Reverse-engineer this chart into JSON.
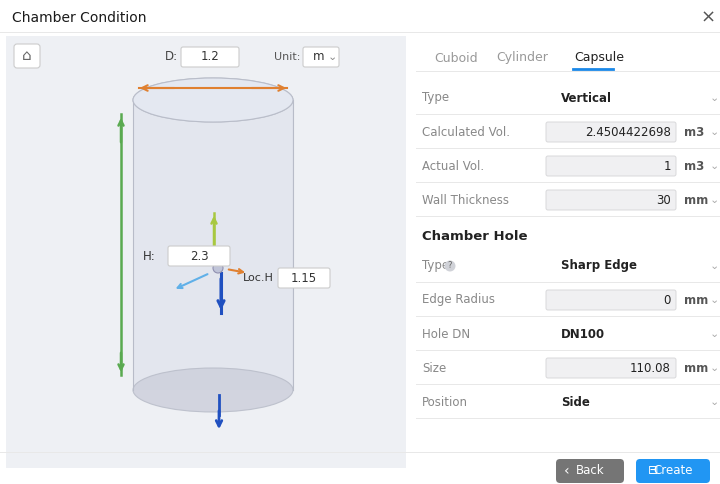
{
  "bg_color": "#f4f4f6",
  "panel_bg": "#ffffff",
  "left_bg": "#eef0f4",
  "title": "Chamber Condition",
  "close_x": "×",
  "tabs": [
    "Cuboid",
    "Cylinder",
    "Capsule"
  ],
  "active_tab": "Capsule",
  "fields": [
    {
      "label": "Type",
      "value": "Vertical",
      "bold": true,
      "has_input": false
    },
    {
      "label": "Calculated Vol.",
      "value": "2.4504422698",
      "bold": false,
      "has_input": true,
      "unit": "m3"
    },
    {
      "label": "Actual Vol.",
      "value": "1",
      "bold": false,
      "has_input": true,
      "unit": "m3"
    },
    {
      "label": "Wall Thickness",
      "value": "30",
      "bold": false,
      "has_input": true,
      "unit": "mm"
    }
  ],
  "chamber_hole_label": "Chamber Hole",
  "hole_fields": [
    {
      "label": "Type",
      "value": "Sharp Edge",
      "bold": true,
      "has_input": false,
      "has_help": true
    },
    {
      "label": "Edge Radius",
      "value": "0",
      "bold": false,
      "has_input": true,
      "unit": "mm"
    },
    {
      "label": "Hole DN",
      "value": "DN100",
      "bold": true,
      "has_input": false
    },
    {
      "label": "Size",
      "value": "110.08",
      "bold": false,
      "has_input": true,
      "unit": "mm"
    },
    {
      "label": "Position",
      "value": "Side",
      "bold": true,
      "has_input": false
    }
  ],
  "d_label": "D:",
  "d_value": "1.2",
  "h_label": "H:",
  "h_value": "2.3",
  "loch_label": "Loc.H",
  "loch_value": "1.15",
  "unit_label": "Unit:",
  "unit_value": "m",
  "back_btn": "Back",
  "create_btn": "Create",
  "back_btn_color": "#757575",
  "create_btn_color": "#2196f3",
  "cyl_fill": "#dde0ea",
  "cyl_stroke": "#b8bcc8",
  "cyl_top_fill": "#e8eaf0",
  "cyl_bottom_fill": "#cdd0dc",
  "arrow_orange": "#e08030",
  "arrow_green": "#5aaa50",
  "arrow_blue": "#2050c0",
  "arrow_blue_light": "#60b0e8",
  "arrow_yellow_green": "#a8c840",
  "arrow_orange_axis": "#e08030",
  "divider_color": "#e8e8e8",
  "input_bg": "#f0f0f2",
  "input_border": "#d8d8da",
  "label_color": "#888888",
  "value_color": "#222222",
  "tab_active_color": "#1a88e8",
  "tab_inactive_color": "#999999"
}
